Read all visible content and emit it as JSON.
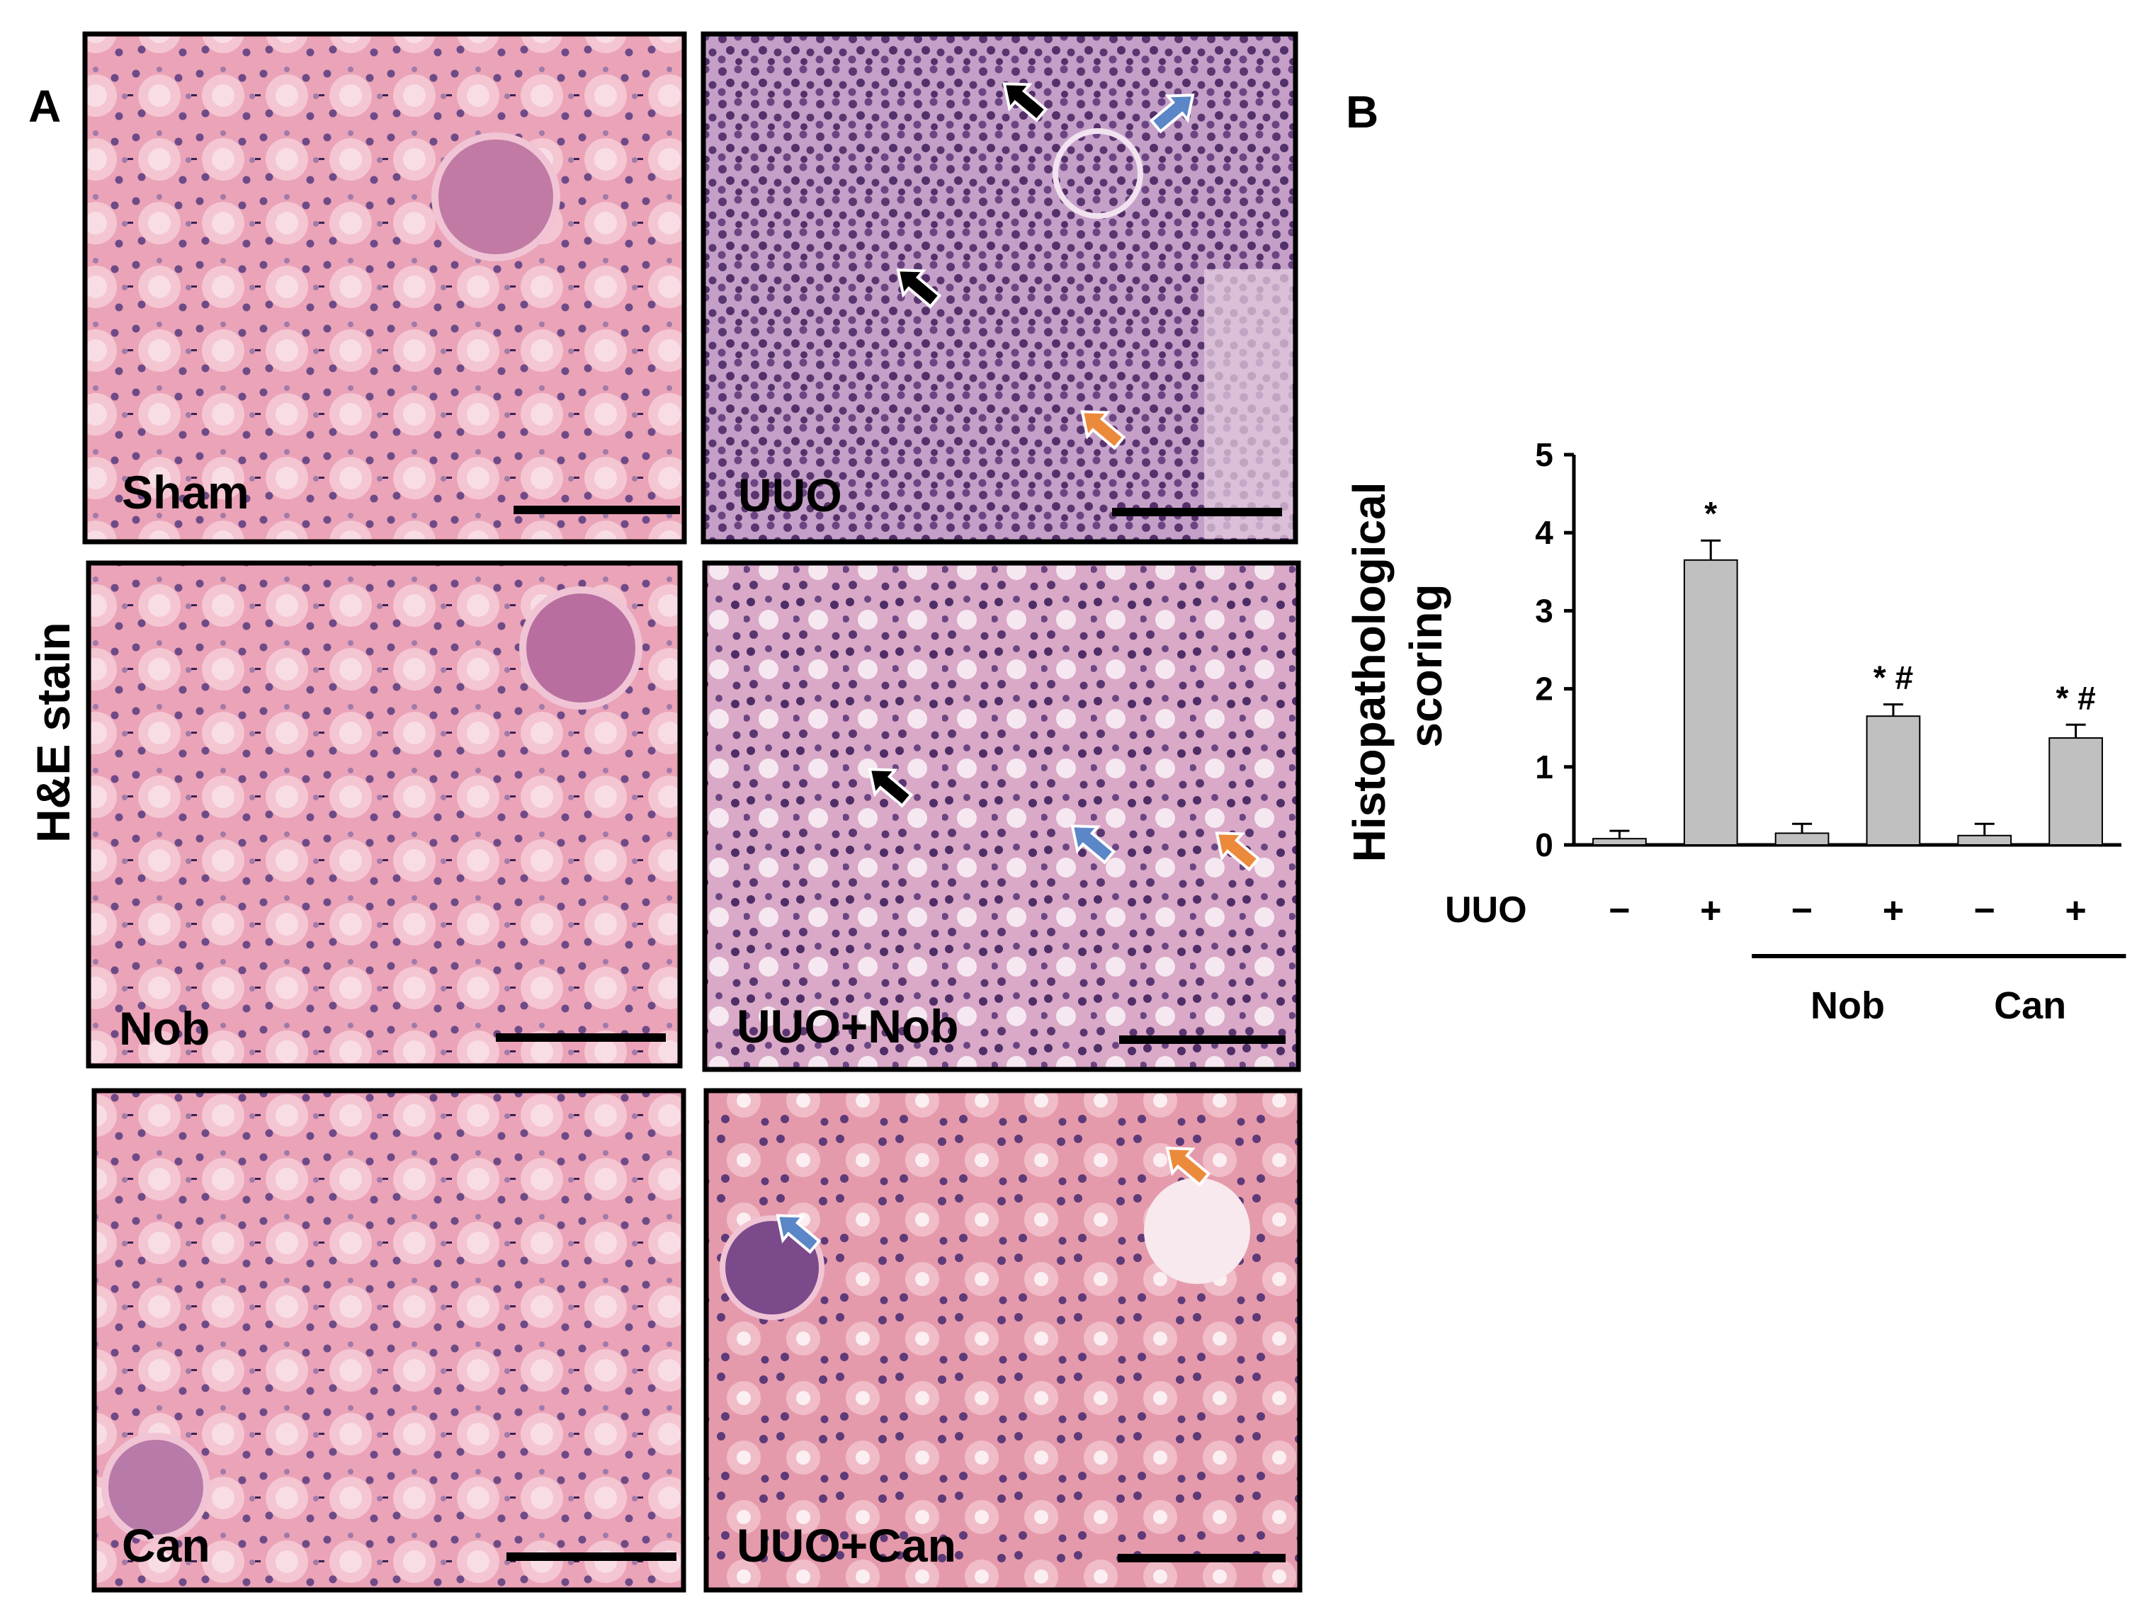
{
  "figure": {
    "panel_a_letter": "A",
    "panel_b_letter": "B",
    "side_label": "H&E stain"
  },
  "micrographs": [
    {
      "label": "Sham",
      "tissue": "normal",
      "arrows": []
    },
    {
      "label": "UUO",
      "tissue": "injured-severe",
      "arrows": [
        {
          "color": "black",
          "angle": -140
        },
        {
          "color": "blue",
          "angle": -40
        },
        {
          "color": "black",
          "angle": -140
        },
        {
          "color": "orange",
          "angle": -140
        }
      ]
    },
    {
      "label": "Nob",
      "tissue": "normal",
      "arrows": []
    },
    {
      "label": "UUO+Nob",
      "tissue": "injured-moderate",
      "arrows": [
        {
          "color": "black",
          "angle": -140
        },
        {
          "color": "blue",
          "angle": -140
        },
        {
          "color": "orange",
          "angle": -140
        }
      ]
    },
    {
      "label": "Can",
      "tissue": "normal",
      "arrows": []
    },
    {
      "label": "UUO+Can",
      "tissue": "injured-mild",
      "arrows": [
        {
          "color": "orange",
          "angle": -140
        },
        {
          "color": "blue",
          "angle": -140
        }
      ]
    }
  ],
  "colors": {
    "tissue_normal": "#eaa0b6",
    "tissue_injured": "#c99bc6",
    "nucleus": "#5a3670",
    "bar_fill": "#c0c0c0",
    "arrow_black": "#000000",
    "arrow_blue": "#5b86c7",
    "arrow_orange": "#ec8a3c",
    "scale_bar": "#000000"
  },
  "chart_data": {
    "type": "bar",
    "title": "",
    "ylabel": "Histopathological scoring",
    "xlabel": "",
    "ylim": [
      0,
      5
    ],
    "yticks": [
      0,
      1,
      2,
      3,
      4,
      5
    ],
    "row_label": "UUO",
    "categories": [
      "−",
      "+",
      "−",
      "+",
      "−",
      "+"
    ],
    "values": [
      0.08,
      3.65,
      0.15,
      1.65,
      0.12,
      1.37
    ],
    "errors": [
      0.1,
      0.25,
      0.12,
      0.15,
      0.15,
      0.17
    ],
    "significance": [
      "",
      "*",
      "",
      "* #",
      "",
      "* #"
    ],
    "groups": [
      {
        "label": "Nob",
        "start": 2,
        "end": 3
      },
      {
        "label": "Can",
        "start": 4,
        "end": 5
      }
    ],
    "grid": false,
    "legend": "none"
  }
}
